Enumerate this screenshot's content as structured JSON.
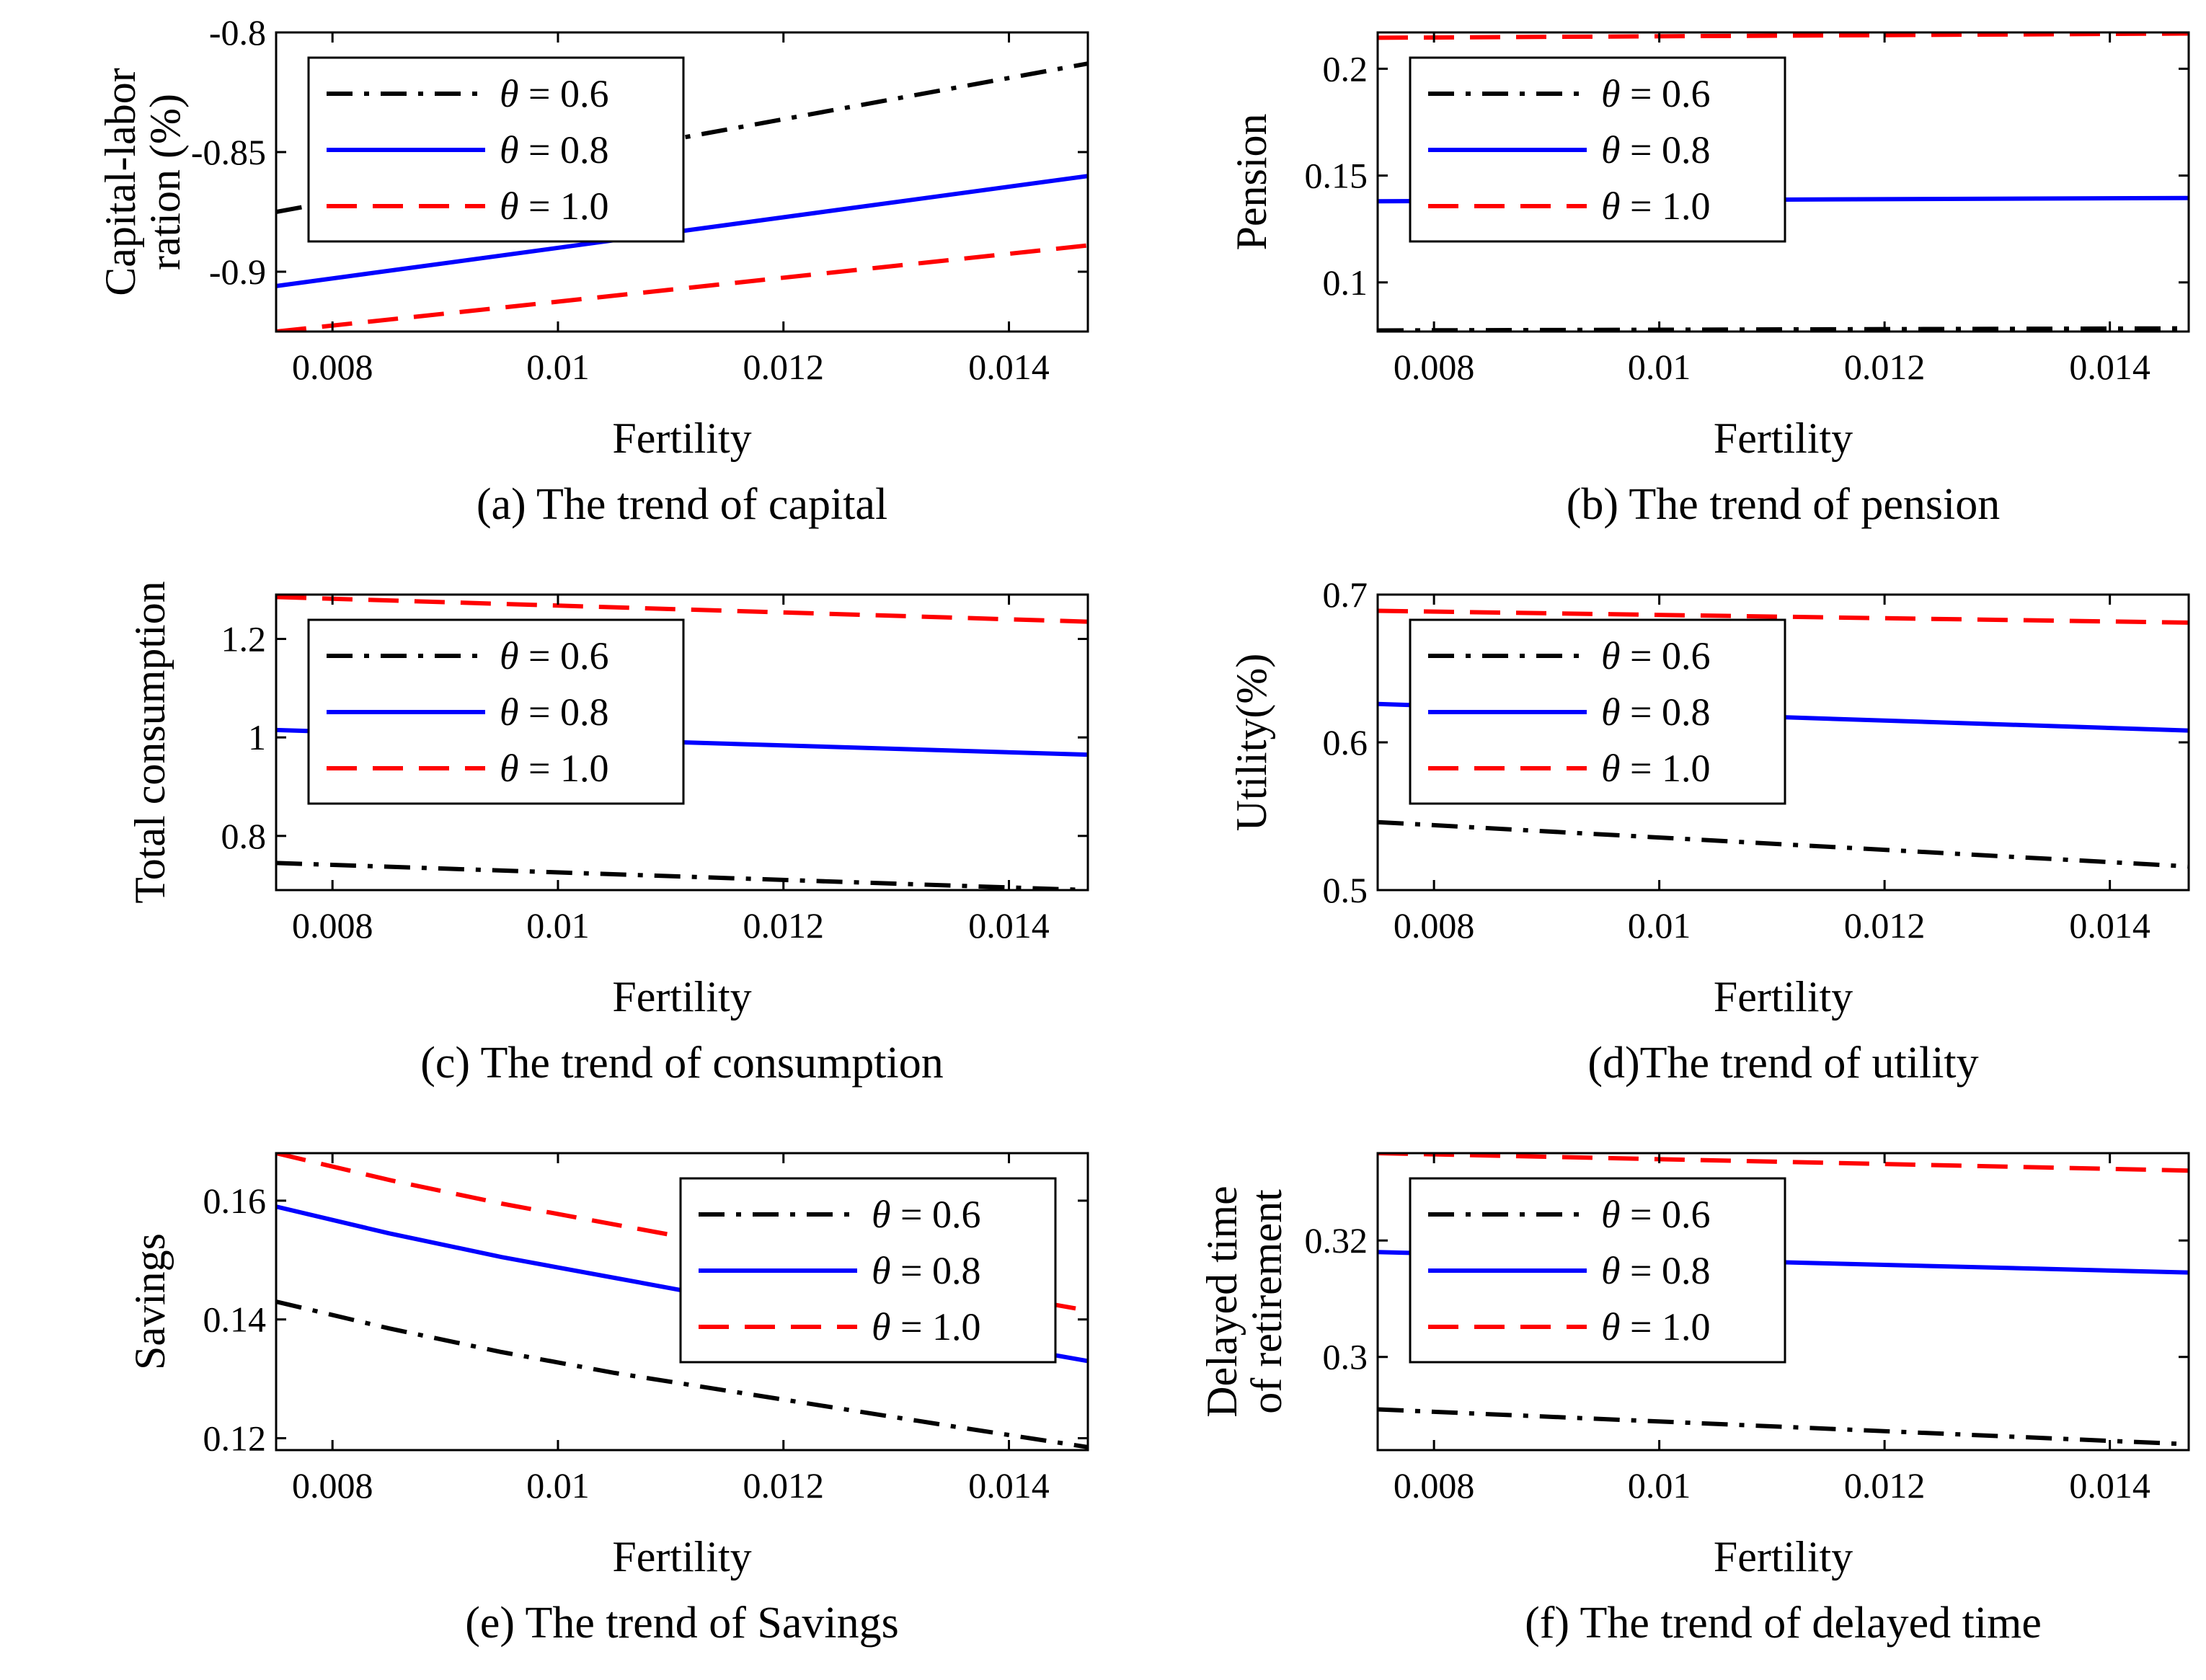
{
  "chart_data": [
    {
      "id": "a",
      "type": "line",
      "caption": "(a) The trend of capital",
      "xlabel": "Fertility",
      "ylabel": [
        "Capital-labor",
        "ration (%)"
      ],
      "xlim": [
        0.0075,
        0.0147
      ],
      "ylim": [
        -0.925,
        -0.8
      ],
      "xticks": [
        0.008,
        0.01,
        0.012,
        0.014
      ],
      "xtick_labels": [
        "0.008",
        "0.01",
        "0.012",
        "0.014"
      ],
      "yticks": [
        -0.9,
        -0.85,
        -0.8
      ],
      "ytick_labels": [
        "-0.9",
        "-0.85",
        "-0.8"
      ],
      "legend_position": "top-left",
      "series": [
        {
          "name": "θ = 0.6",
          "theta": "0.6",
          "color": "#000000",
          "style": "dashdot",
          "x": [
            0.0075,
            0.0147
          ],
          "y": [
            -0.875,
            -0.813
          ]
        },
        {
          "name": "θ = 0.8",
          "theta": "0.8",
          "color": "#0000ff",
          "style": "solid",
          "x": [
            0.0075,
            0.0147
          ],
          "y": [
            -0.906,
            -0.86
          ]
        },
        {
          "name": "θ = 1.0",
          "theta": "1.0",
          "color": "#ff0000",
          "style": "dashed",
          "x": [
            0.0075,
            0.0147
          ],
          "y": [
            -0.925,
            -0.889
          ]
        }
      ]
    },
    {
      "id": "b",
      "type": "line",
      "caption": "(b) The trend of pension",
      "xlabel": "Fertility",
      "ylabel": [
        "Pension"
      ],
      "xlim": [
        0.0075,
        0.0147
      ],
      "ylim": [
        0.077,
        0.217
      ],
      "xticks": [
        0.008,
        0.01,
        0.012,
        0.014
      ],
      "xtick_labels": [
        "0.008",
        "0.01",
        "0.012",
        "0.014"
      ],
      "yticks": [
        0.1,
        0.15,
        0.2
      ],
      "ytick_labels": [
        "0.1",
        "0.15",
        "0.2"
      ],
      "legend_position": "top-left",
      "series": [
        {
          "name": "θ = 0.6",
          "theta": "0.6",
          "color": "#000000",
          "style": "dashdot",
          "x": [
            0.0075,
            0.0147
          ],
          "y": [
            0.0775,
            0.0785
          ]
        },
        {
          "name": "θ = 0.8",
          "theta": "0.8",
          "color": "#0000ff",
          "style": "solid",
          "x": [
            0.0075,
            0.0147
          ],
          "y": [
            0.138,
            0.1395
          ]
        },
        {
          "name": "θ = 1.0",
          "theta": "1.0",
          "color": "#ff0000",
          "style": "dashed",
          "x": [
            0.0075,
            0.0147
          ],
          "y": [
            0.2145,
            0.2165
          ]
        }
      ]
    },
    {
      "id": "c",
      "type": "line",
      "caption": "(c) The trend of consumption",
      "xlabel": "Fertility",
      "ylabel": [
        "Total consumption"
      ],
      "xlim": [
        0.0075,
        0.0147
      ],
      "ylim": [
        0.69,
        1.29
      ],
      "xticks": [
        0.008,
        0.01,
        0.012,
        0.014
      ],
      "xtick_labels": [
        "0.008",
        "0.01",
        "0.012",
        "0.014"
      ],
      "yticks": [
        0.8,
        1.0,
        1.2
      ],
      "ytick_labels": [
        "0.8",
        "1",
        "1.2"
      ],
      "legend_position": "top-left",
      "series": [
        {
          "name": "θ = 0.6",
          "theta": "0.6",
          "color": "#000000",
          "style": "dashdot",
          "x": [
            0.0075,
            0.0147
          ],
          "y": [
            0.745,
            0.69
          ]
        },
        {
          "name": "θ = 0.8",
          "theta": "0.8",
          "color": "#0000ff",
          "style": "solid",
          "x": [
            0.0075,
            0.0147
          ],
          "y": [
            1.015,
            0.965
          ]
        },
        {
          "name": "θ = 1.0",
          "theta": "1.0",
          "color": "#ff0000",
          "style": "dashed",
          "x": [
            0.0075,
            0.0147
          ],
          "y": [
            1.285,
            1.235
          ]
        }
      ]
    },
    {
      "id": "d",
      "type": "line",
      "caption": "(d)The trend of utility",
      "xlabel": "Fertility",
      "ylabel": [
        "Utility(%)"
      ],
      "xlim": [
        0.0075,
        0.0147
      ],
      "ylim": [
        0.5,
        0.7
      ],
      "xticks": [
        0.008,
        0.01,
        0.012,
        0.014
      ],
      "xtick_labels": [
        "0.008",
        "0.01",
        "0.012",
        "0.014"
      ],
      "yticks": [
        0.5,
        0.6,
        0.7
      ],
      "ytick_labels": [
        "0.5",
        "0.6",
        "0.7"
      ],
      "legend_position": "top-left",
      "series": [
        {
          "name": "θ = 0.6",
          "theta": "0.6",
          "color": "#000000",
          "style": "dashdot",
          "x": [
            0.0075,
            0.0147
          ],
          "y": [
            0.546,
            0.516
          ]
        },
        {
          "name": "θ = 0.8",
          "theta": "0.8",
          "color": "#0000ff",
          "style": "solid",
          "x": [
            0.0075,
            0.0147
          ],
          "y": [
            0.626,
            0.608
          ]
        },
        {
          "name": "θ = 1.0",
          "theta": "1.0",
          "color": "#ff0000",
          "style": "dashed",
          "x": [
            0.0075,
            0.0147
          ],
          "y": [
            0.689,
            0.681
          ]
        }
      ]
    },
    {
      "id": "e",
      "type": "line",
      "caption": "(e) The trend of Savings",
      "xlabel": "Fertility",
      "ylabel": [
        "Savings"
      ],
      "xlim": [
        0.0075,
        0.0147
      ],
      "ylim": [
        0.118,
        0.168
      ],
      "xticks": [
        0.008,
        0.01,
        0.012,
        0.014
      ],
      "xtick_labels": [
        "0.008",
        "0.01",
        "0.012",
        "0.014"
      ],
      "yticks": [
        0.12,
        0.14,
        0.16
      ],
      "ytick_labels": [
        "0.12",
        "0.14",
        "0.16"
      ],
      "legend_position": "top-right",
      "series": [
        {
          "name": "θ = 0.6",
          "theta": "0.6",
          "color": "#000000",
          "style": "dashdot",
          "x": [
            0.0075,
            0.0085,
            0.0095,
            0.0105,
            0.0115,
            0.0125,
            0.0135,
            0.0147
          ],
          "y": [
            0.143,
            0.1385,
            0.1345,
            0.131,
            0.128,
            0.125,
            0.122,
            0.1185
          ]
        },
        {
          "name": "θ = 0.8",
          "theta": "0.8",
          "color": "#0000ff",
          "style": "solid",
          "x": [
            0.0075,
            0.0085,
            0.0095,
            0.0105,
            0.0115,
            0.0125,
            0.0135,
            0.0147
          ],
          "y": [
            0.159,
            0.1545,
            0.1505,
            0.147,
            0.1435,
            0.1405,
            0.137,
            0.133
          ]
        },
        {
          "name": "θ = 1.0",
          "theta": "1.0",
          "color": "#ff0000",
          "style": "dashed",
          "x": [
            0.0075,
            0.0085,
            0.0095,
            0.0105,
            0.0115,
            0.0125,
            0.0135,
            0.0147
          ],
          "y": [
            0.168,
            0.1635,
            0.1595,
            0.156,
            0.1525,
            0.149,
            0.1455,
            0.1415
          ]
        }
      ]
    },
    {
      "id": "f",
      "type": "line",
      "caption": "(f) The trend of delayed time",
      "xlabel": "Fertility",
      "ylabel": [
        "Delayed time",
        "of retirement"
      ],
      "xlim": [
        0.0075,
        0.0147
      ],
      "ylim": [
        0.284,
        0.335
      ],
      "xticks": [
        0.008,
        0.01,
        0.012,
        0.014
      ],
      "xtick_labels": [
        "0.008",
        "0.01",
        "0.012",
        "0.014"
      ],
      "yticks": [
        0.3,
        0.32
      ],
      "ytick_labels": [
        "0.3",
        "0.32"
      ],
      "legend_position": "top-left",
      "series": [
        {
          "name": "θ = 0.6",
          "theta": "0.6",
          "color": "#000000",
          "style": "dashdot",
          "x": [
            0.0075,
            0.0147
          ],
          "y": [
            0.291,
            0.285
          ]
        },
        {
          "name": "θ = 0.8",
          "theta": "0.8",
          "color": "#0000ff",
          "style": "solid",
          "x": [
            0.0075,
            0.0147
          ],
          "y": [
            0.318,
            0.3145
          ]
        },
        {
          "name": "θ = 1.0",
          "theta": "1.0",
          "color": "#ff0000",
          "style": "dashed",
          "x": [
            0.0075,
            0.0147
          ],
          "y": [
            0.335,
            0.332
          ]
        }
      ]
    }
  ]
}
